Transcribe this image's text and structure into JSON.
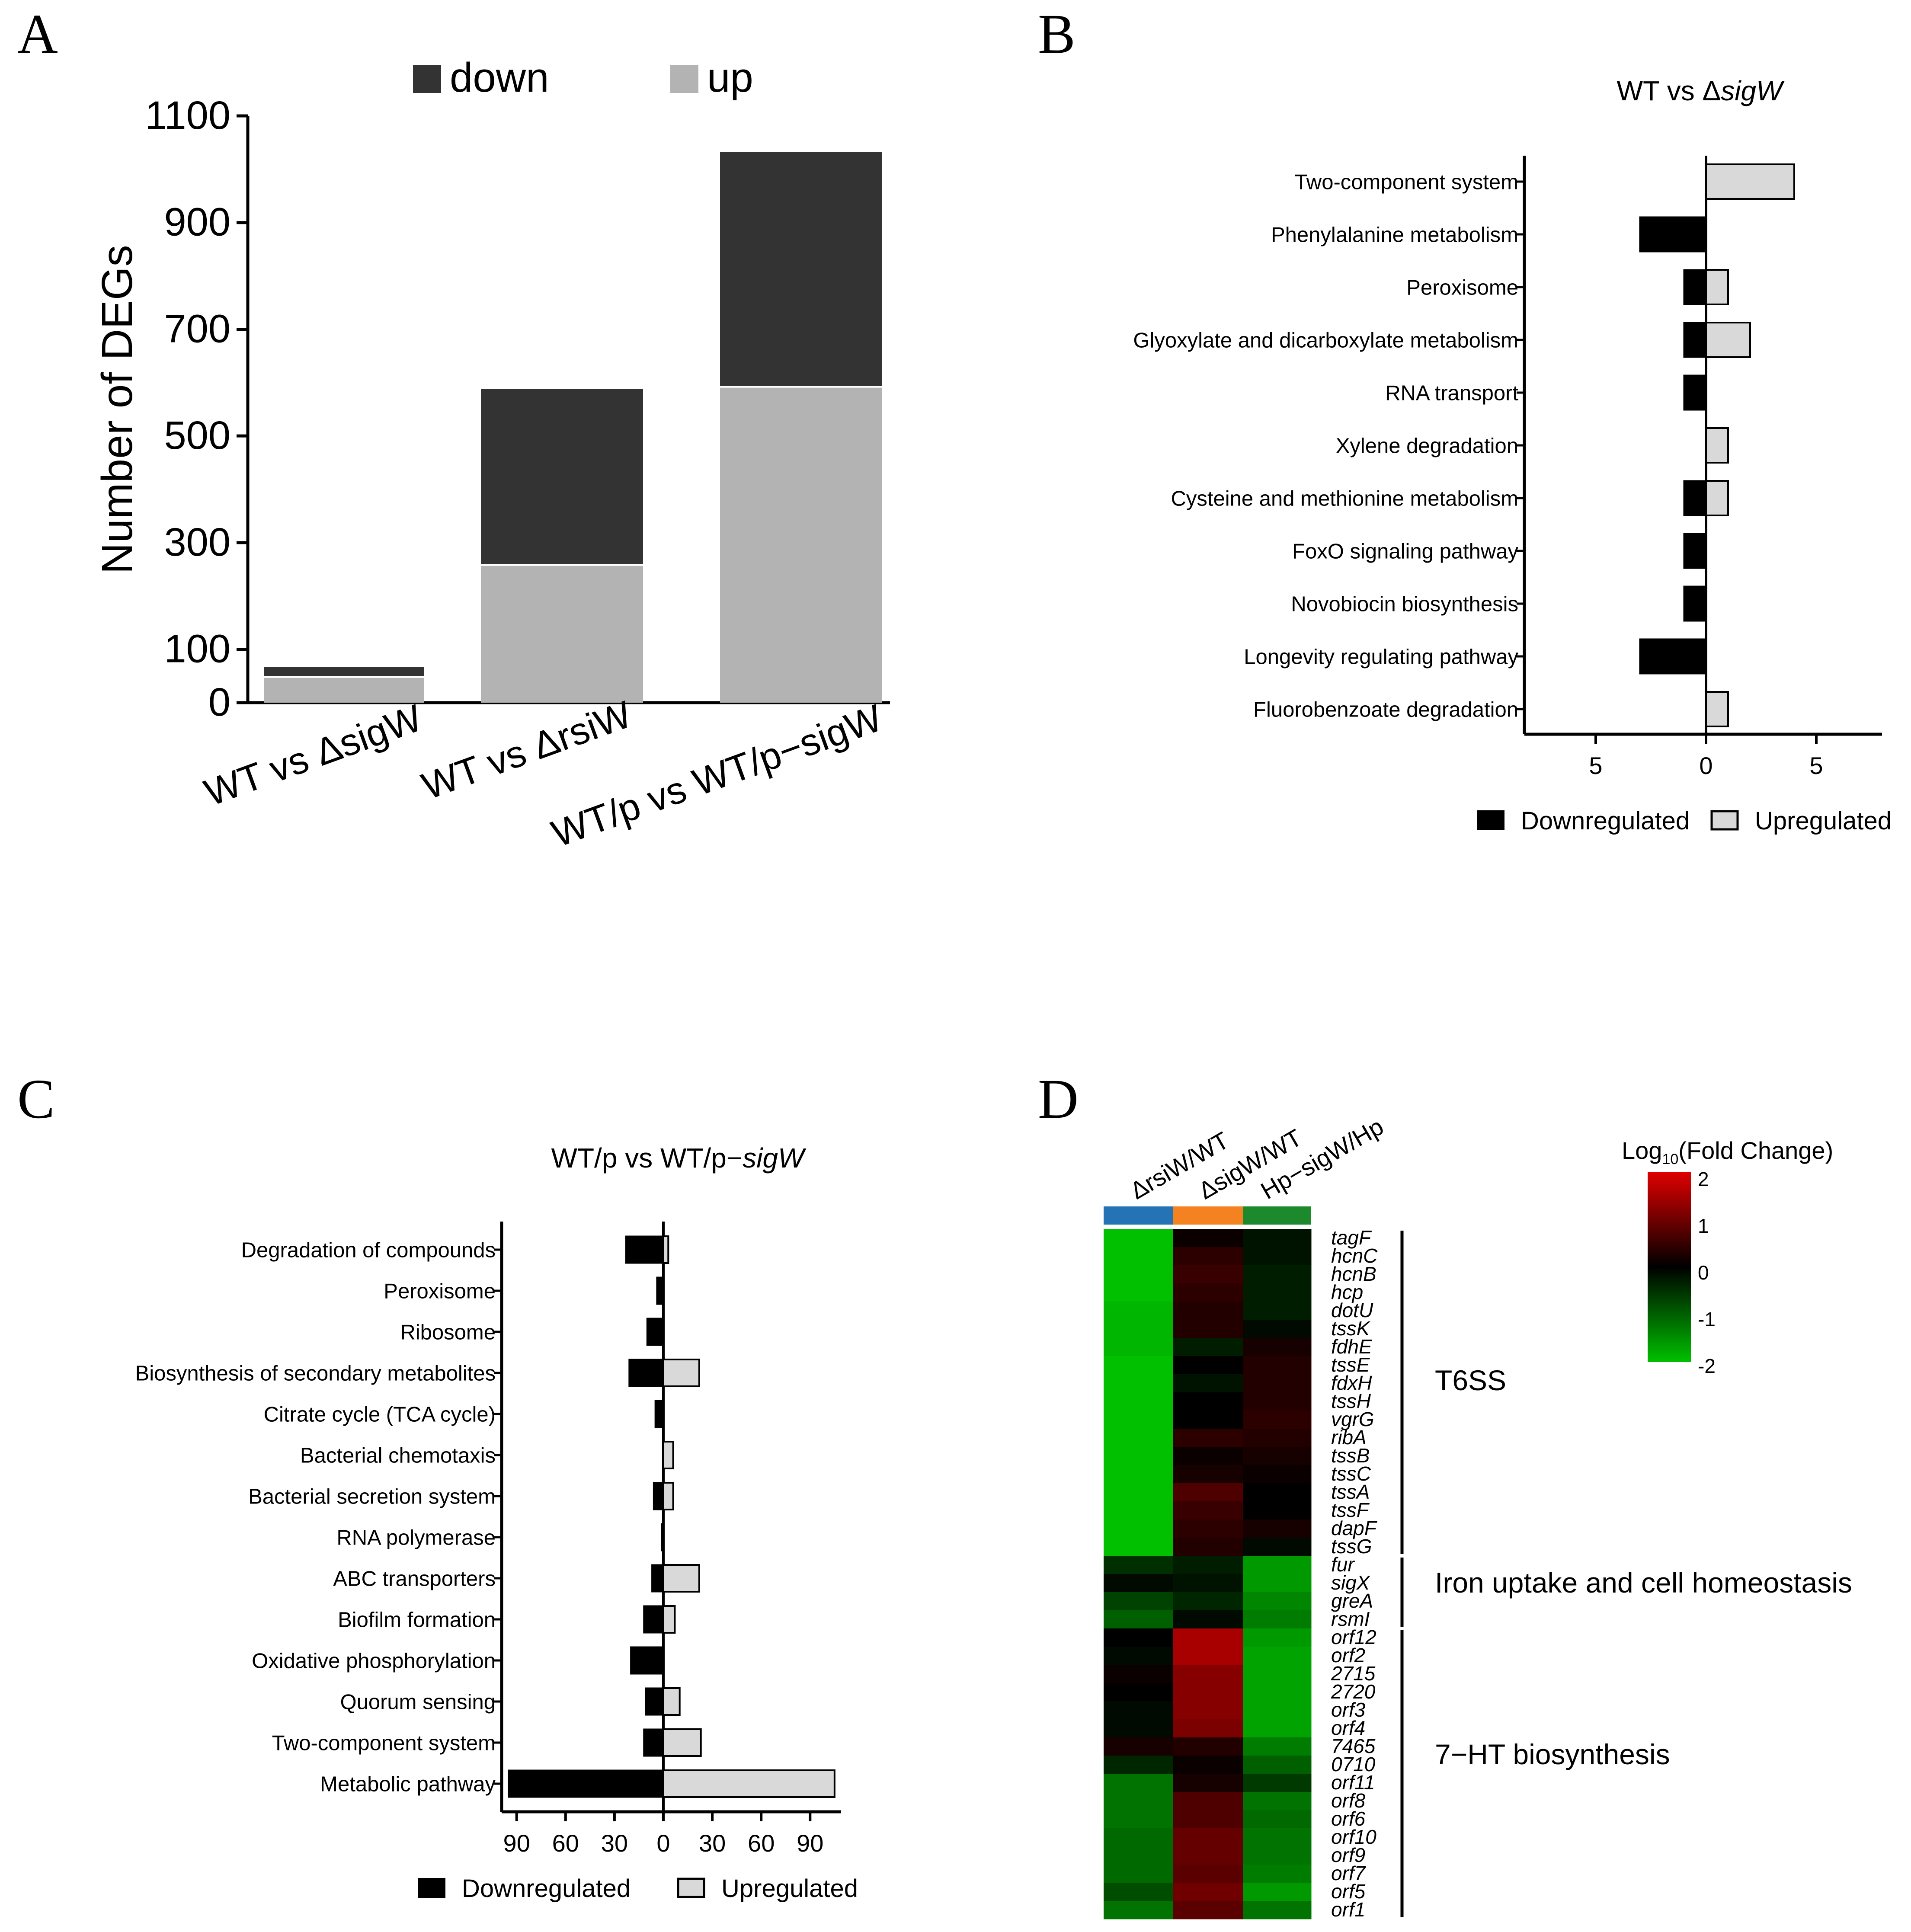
{
  "colors": {
    "stack_down": "#333333",
    "stack_up": "#b3b3b3",
    "bar_down": "#000000",
    "bar_up": "#d9d9d9",
    "axis": "#000000",
    "heat_high": "#e00000",
    "heat_mid": "#000000",
    "heat_low": "#00c000",
    "col_rsiW": "#2474b5",
    "col_sigW": "#f58220",
    "col_hp": "#1c8a2c"
  },
  "chart_data": [
    {
      "panel": "A",
      "type": "bar",
      "stacked": true,
      "title": "",
      "xlabel": "",
      "ylabel": "Number of DEGs",
      "ylim": [
        0,
        1100
      ],
      "yticks": [
        0,
        100,
        300,
        500,
        700,
        900,
        1100
      ],
      "legend": [
        "down",
        "up"
      ],
      "legend_position": "top",
      "categories": [
        "WT vs ΔsigW",
        "WT vs ΔrsiW",
        "WT/p vs WT/p−sigW"
      ],
      "series": [
        {
          "name": "up",
          "values": [
            48,
            258,
            592
          ]
        },
        {
          "name": "down",
          "values": [
            19,
            330,
            440
          ]
        }
      ]
    },
    {
      "panel": "B",
      "type": "bar",
      "orientation": "horizontal",
      "title_main": "WT vs Δ",
      "title_gene": "sigW",
      "xlabel": "",
      "xlim": [
        -8,
        8
      ],
      "xticks": [
        {
          "value": -5,
          "label": "5"
        },
        {
          "value": 0,
          "label": "0"
        },
        {
          "value": 5,
          "label": "5"
        }
      ],
      "legend": [
        "Downregulated",
        "Upregulated"
      ],
      "legend_position": "bottom",
      "categories": [
        "Two-component system",
        "Phenylalanine metabolism",
        "Peroxisome",
        "Glyoxylate and dicarboxylate metabolism",
        "RNA transport",
        "Xylene degradation",
        "Cysteine and methionine metabolism",
        "FoxO signaling pathway",
        "Novobiocin biosynthesis",
        "Longevity regulating pathway",
        "Fluorobenzoate degradation"
      ],
      "series": [
        {
          "name": "Downregulated",
          "values": [
            0,
            3,
            1,
            1,
            1,
            0,
            1,
            1,
            1,
            3,
            0
          ]
        },
        {
          "name": "Upregulated",
          "values": [
            4,
            0,
            1,
            2,
            0,
            1,
            1,
            0,
            0,
            0,
            1
          ]
        }
      ]
    },
    {
      "panel": "C",
      "type": "bar",
      "orientation": "horizontal",
      "title_main": "WT/p vs WT/p−",
      "title_gene": "sigW",
      "xlabel": "",
      "xlim": [
        -100,
        110
      ],
      "xticks": [
        {
          "value": -90,
          "label": "90"
        },
        {
          "value": -60,
          "label": "60"
        },
        {
          "value": -30,
          "label": "30"
        },
        {
          "value": 0,
          "label": "0"
        },
        {
          "value": 30,
          "label": "30"
        },
        {
          "value": 60,
          "label": "60"
        },
        {
          "value": 90,
          "label": "90"
        }
      ],
      "legend": [
        "Downregulated",
        "Upregulated"
      ],
      "legend_position": "bottom",
      "categories": [
        "Degradation of compounds",
        "Peroxisome",
        "Ribosome",
        "Biosynthesis of secondary metabolites",
        "Citrate cycle (TCA cycle)",
        "Bacterial chemotaxis",
        "Bacterial secretion system",
        "RNA polymerase",
        "ABC transporters",
        "Biofilm formation",
        "Oxidative phosphorylation",
        "Quorum sensing",
        "Two-component system",
        "Metabolic pathway"
      ],
      "series": [
        {
          "name": "Downregulated",
          "values": [
            23,
            4,
            10,
            21,
            5,
            0,
            6,
            1,
            7,
            12,
            20,
            11,
            12,
            95
          ]
        },
        {
          "name": "Upregulated",
          "values": [
            3,
            0,
            0,
            22,
            0,
            6,
            6,
            0,
            22,
            7,
            0,
            10,
            23,
            105
          ]
        }
      ]
    },
    {
      "panel": "D",
      "type": "heatmap",
      "title": "",
      "colorbar_title_pre": "Log",
      "colorbar_title_sub": "10",
      "colorbar_title_post": "(Fold Change)",
      "colorbar_range": [
        -2,
        2
      ],
      "colorbar_ticks": [
        "2",
        "1",
        "0",
        "-1",
        "-2"
      ],
      "columns": [
        "ΔrsiW/WT",
        "ΔsigW/WT",
        "Hp−sigW/Hp"
      ],
      "rows": [
        "tagF",
        "hcnC",
        "hcnB",
        "hcp",
        "dotU",
        "tssK",
        "fdhE",
        "tssE",
        "fdxH",
        "tssH",
        "vgrG",
        "ribA",
        "tssB",
        "tssC",
        "tssA",
        "tssF",
        "dapF",
        "tssG",
        "fur",
        "sigX",
        "greA",
        "rsmI",
        "orf12",
        "orf2",
        "2715",
        "2720",
        "orf3",
        "orf4",
        "7465",
        "0710",
        "orf11",
        "orf8",
        "orf6",
        "orf10",
        "orf9",
        "orf7",
        "orf5",
        "orf1"
      ],
      "values": [
        [
          -2.0,
          0.1,
          -0.2
        ],
        [
          -2.0,
          0.4,
          -0.2
        ],
        [
          -2.0,
          0.5,
          -0.3
        ],
        [
          -2.0,
          0.4,
          -0.3
        ],
        [
          -1.9,
          0.3,
          -0.3
        ],
        [
          -1.9,
          0.3,
          -0.1
        ],
        [
          -1.9,
          -0.3,
          0.2
        ],
        [
          -2.0,
          0.0,
          0.3
        ],
        [
          -2.0,
          -0.2,
          0.3
        ],
        [
          -2.0,
          0.0,
          0.3
        ],
        [
          -2.0,
          0.0,
          0.4
        ],
        [
          -2.0,
          0.4,
          0.3
        ],
        [
          -2.0,
          0.1,
          0.2
        ],
        [
          -2.0,
          0.2,
          0.1
        ],
        [
          -2.0,
          0.7,
          0.0
        ],
        [
          -2.0,
          0.5,
          0.0
        ],
        [
          -2.0,
          0.4,
          0.2
        ],
        [
          -2.0,
          0.3,
          -0.1
        ],
        [
          -0.5,
          -0.3,
          -1.6
        ],
        [
          -0.1,
          -0.2,
          -1.6
        ],
        [
          -0.7,
          -0.4,
          -1.4
        ],
        [
          -1.0,
          -0.1,
          -1.3
        ],
        [
          0.0,
          1.5,
          -1.6
        ],
        [
          -0.1,
          1.5,
          -1.7
        ],
        [
          0.1,
          1.2,
          -1.7
        ],
        [
          0.0,
          1.2,
          -1.7
        ],
        [
          -0.1,
          1.2,
          -1.7
        ],
        [
          -0.1,
          1.1,
          -1.7
        ],
        [
          0.2,
          0.3,
          -1.3
        ],
        [
          -0.4,
          0.1,
          -1.0
        ],
        [
          -1.2,
          0.2,
          -0.6
        ],
        [
          -1.2,
          0.7,
          -1.2
        ],
        [
          -1.2,
          0.7,
          -1.1
        ],
        [
          -1.1,
          0.9,
          -1.2
        ],
        [
          -1.1,
          0.9,
          -1.2
        ],
        [
          -1.1,
          0.8,
          -1.3
        ],
        [
          -0.8,
          1.0,
          -1.6
        ],
        [
          -1.2,
          0.8,
          -1.2
        ]
      ],
      "groups": [
        {
          "label": "T6SS",
          "start": 0,
          "end": 17
        },
        {
          "label": "Iron uptake and cell homeostasis",
          "start": 18,
          "end": 21
        },
        {
          "label": "7−HT biosynthesis",
          "start": 22,
          "end": 37
        }
      ]
    }
  ],
  "panel_letters": {
    "a": "A",
    "b": "B",
    "c": "C",
    "d": "D"
  }
}
